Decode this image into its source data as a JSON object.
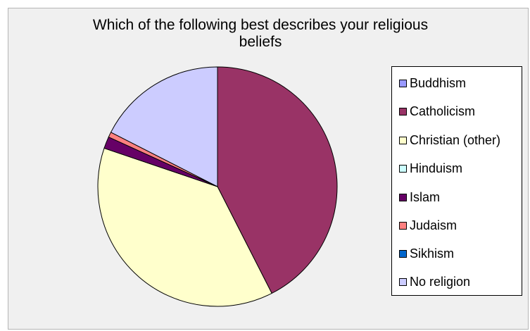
{
  "chart_data": {
    "type": "pie",
    "title": "Which of the following best describes your religious beliefs",
    "legend_position": "right",
    "categories": [
      "Buddhism",
      "Catholicism",
      "Christian (other)",
      "Hinduism",
      "Islam",
      "Judaism",
      "Sikhism",
      "No religion"
    ],
    "values": [
      0.0,
      42.5,
      37.7,
      0.0,
      1.6,
      0.7,
      0.0,
      17.5
    ],
    "colors": [
      "#9999ff",
      "#993366",
      "#ffffcc",
      "#ccffff",
      "#660066",
      "#ff8080",
      "#0066cc",
      "#ccccff"
    ]
  }
}
